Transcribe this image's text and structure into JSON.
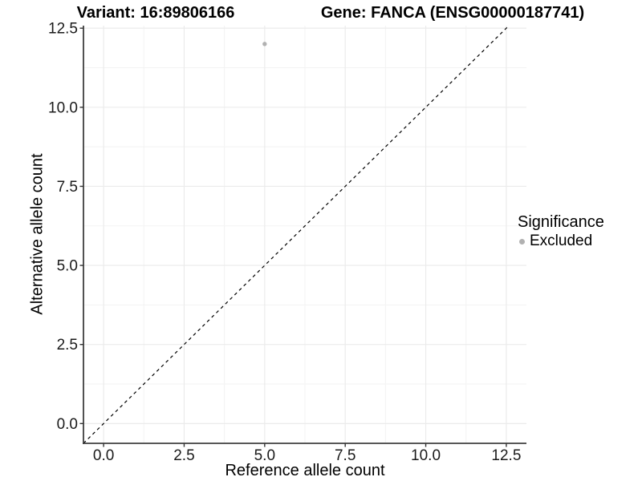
{
  "titles": {
    "variant": "Variant: 16:89806166",
    "gene": "Gene: FANCA (ENSG00000187741)"
  },
  "axes": {
    "x": {
      "label": "Reference allele count",
      "tick_labels": [
        "0.0",
        "2.5",
        "5.0",
        "7.5",
        "10.0",
        "12.5"
      ]
    },
    "y": {
      "label": "Alternative allele count",
      "tick_labels": [
        "0.0",
        "2.5",
        "5.0",
        "7.5",
        "10.0",
        "12.5"
      ]
    }
  },
  "legend": {
    "title": "Significance",
    "items": [
      {
        "label": "Excluded",
        "color": "#b1b1b1",
        "marker": "circle-icon"
      }
    ]
  },
  "colors": {
    "background": "#ffffff",
    "grid_major": "#ebebeb",
    "grid_minor": "#f3f3f3",
    "axis_line": "#3f3f3f",
    "tick_mark": "#333333",
    "tick_label": "#1a1a1a",
    "point": "#b1b1b1",
    "reference_line": "#000000"
  },
  "chart_data": {
    "type": "scatter",
    "title": "Variant: 16:89806166        Gene: FANCA (ENSG00000187741)",
    "xlabel": "Reference allele count",
    "ylabel": "Alternative allele count",
    "xlim": [
      -0.625,
      13.125
    ],
    "ylim": [
      -0.625,
      12.58
    ],
    "x_ticks": [
      0,
      2.5,
      5,
      7.5,
      10,
      12.5
    ],
    "y_ticks": [
      0,
      2.5,
      5,
      7.5,
      10,
      12.5
    ],
    "grid": "major+minor",
    "legend_position": "right",
    "series": [
      {
        "name": "Excluded",
        "color": "#b1b1b1",
        "points": [
          {
            "x": 5,
            "y": 12
          }
        ]
      }
    ],
    "reference_line": {
      "slope": 1,
      "intercept": 0,
      "style": "dashed",
      "color": "#000000"
    }
  }
}
